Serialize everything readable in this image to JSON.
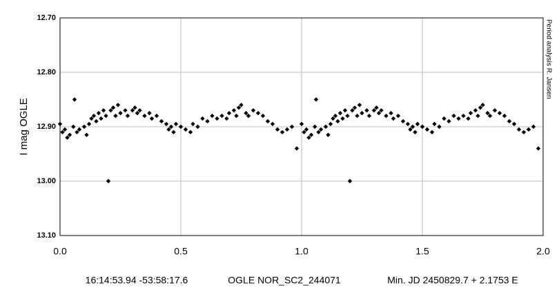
{
  "chart_data": {
    "type": "scatter",
    "y_label": "I mag OGLE",
    "side_note": "Period analysis  R. Jansen",
    "footer": [
      "16:14:53.94 -53:58:17.6",
      "OGLE NOR_SC2_244071",
      "Min. JD 2450829.7 + 2.1753 E"
    ],
    "xlim": [
      0,
      2
    ],
    "ylim": [
      13.1,
      12.7
    ],
    "y_inverted": true,
    "grid": true,
    "xticks": [
      {
        "value": 0,
        "label": "0.0"
      },
      0.5,
      {
        "value": 1,
        "label": "1.0"
      },
      1.5,
      {
        "value": 2,
        "label": "2.0"
      }
    ],
    "yticks": [
      {
        "value": 12.7,
        "label": "12.70"
      },
      {
        "value": 12.8,
        "label": "12.80"
      },
      {
        "value": 12.9,
        "label": "12.90"
      },
      {
        "value": 13.0,
        "label": "13.00"
      },
      {
        "value": 13.1,
        "label": "13.10"
      }
    ],
    "series": [
      {
        "color": "#000000",
        "x": [
          0.0,
          0.01,
          0.02,
          0.03,
          0.04,
          0.055,
          0.06,
          0.07,
          0.08,
          0.1,
          0.11,
          0.12,
          0.13,
          0.14,
          0.15,
          0.16,
          0.17,
          0.18,
          0.19,
          0.2,
          0.21,
          0.22,
          0.23,
          0.24,
          0.25,
          0.27,
          0.28,
          0.3,
          0.31,
          0.32,
          0.33,
          0.35,
          0.37,
          0.38,
          0.4,
          0.42,
          0.44,
          0.45,
          0.46,
          0.47,
          0.48,
          0.5,
          0.52,
          0.54,
          0.55,
          0.57,
          0.59,
          0.61,
          0.63,
          0.65,
          0.67,
          0.69,
          0.7,
          0.72,
          0.73,
          0.74,
          0.75,
          0.77,
          0.78,
          0.8,
          0.82,
          0.84,
          0.86,
          0.88,
          0.9,
          0.92,
          0.94,
          0.96,
          0.98,
          1.0,
          1.01,
          1.02,
          1.03,
          1.04,
          1.055,
          1.06,
          1.07,
          1.08,
          1.1,
          1.11,
          1.12,
          1.13,
          1.14,
          1.15,
          1.16,
          1.17,
          1.18,
          1.19,
          1.2,
          1.21,
          1.22,
          1.23,
          1.24,
          1.25,
          1.27,
          1.28,
          1.3,
          1.31,
          1.32,
          1.33,
          1.35,
          1.37,
          1.38,
          1.4,
          1.42,
          1.44,
          1.45,
          1.46,
          1.47,
          1.48,
          1.5,
          1.52,
          1.54,
          1.55,
          1.57,
          1.59,
          1.61,
          1.63,
          1.65,
          1.67,
          1.69,
          1.7,
          1.72,
          1.73,
          1.74,
          1.75,
          1.77,
          1.78,
          1.8,
          1.82,
          1.84,
          1.86,
          1.88,
          1.9,
          1.92,
          1.94,
          1.96,
          1.98
        ],
        "y": [
          12.895,
          12.91,
          12.905,
          12.92,
          12.915,
          12.9,
          12.85,
          12.91,
          12.905,
          12.9,
          12.915,
          12.895,
          12.885,
          12.88,
          12.89,
          12.875,
          12.885,
          12.87,
          12.88,
          13.0,
          12.87,
          12.865,
          12.88,
          12.86,
          12.875,
          12.87,
          12.88,
          12.87,
          12.865,
          12.875,
          12.87,
          12.88,
          12.875,
          12.885,
          12.88,
          12.89,
          12.895,
          12.905,
          12.9,
          12.91,
          12.895,
          12.9,
          12.905,
          12.91,
          12.895,
          12.9,
          12.885,
          12.89,
          12.88,
          12.885,
          12.88,
          12.885,
          12.875,
          12.87,
          12.88,
          12.865,
          12.86,
          12.875,
          12.88,
          12.87,
          12.875,
          12.88,
          12.89,
          12.895,
          12.905,
          12.91,
          12.905,
          12.9,
          12.94,
          12.895,
          12.91,
          12.905,
          12.92,
          12.915,
          12.9,
          12.85,
          12.91,
          12.905,
          12.9,
          12.915,
          12.895,
          12.885,
          12.88,
          12.89,
          12.875,
          12.885,
          12.87,
          12.88,
          13.0,
          12.87,
          12.865,
          12.88,
          12.86,
          12.875,
          12.87,
          12.88,
          12.87,
          12.865,
          12.875,
          12.87,
          12.88,
          12.875,
          12.885,
          12.88,
          12.89,
          12.895,
          12.905,
          12.9,
          12.91,
          12.895,
          12.9,
          12.905,
          12.91,
          12.895,
          12.9,
          12.885,
          12.89,
          12.88,
          12.885,
          12.88,
          12.885,
          12.875,
          12.87,
          12.88,
          12.865,
          12.86,
          12.875,
          12.88,
          12.87,
          12.875,
          12.88,
          12.89,
          12.895,
          12.905,
          12.91,
          12.905,
          12.9,
          12.94
        ]
      }
    ]
  }
}
